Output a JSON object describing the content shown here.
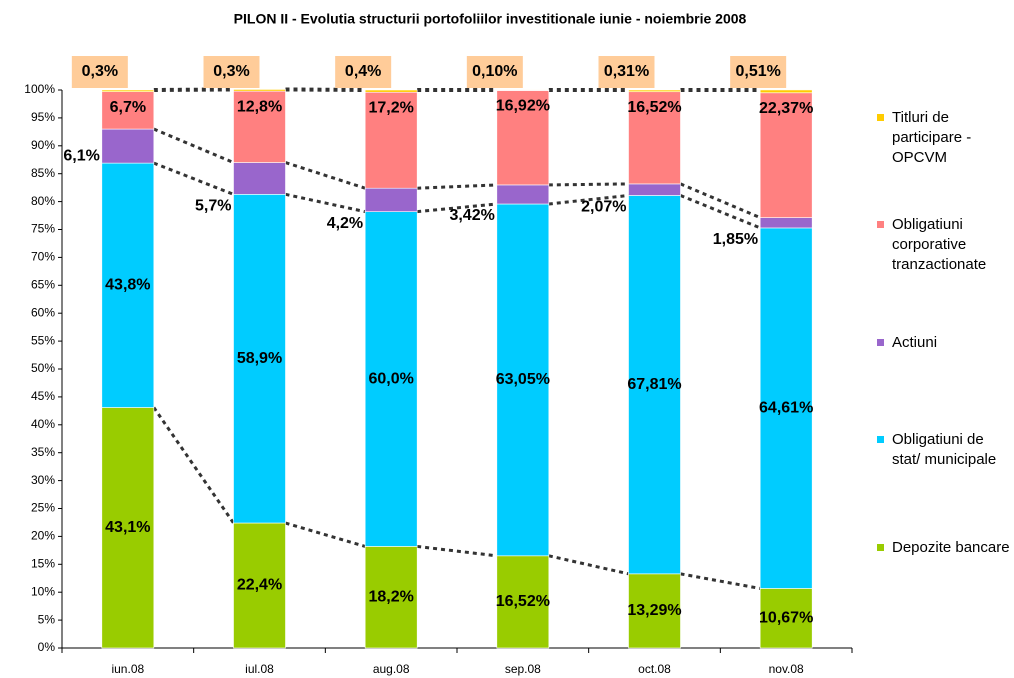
{
  "chart_data": {
    "type": "stacked-bar",
    "title": "PILON II  - Evolutia structurii portofoliilor investitionale iunie -  noiembrie 2008",
    "categories": [
      "iun.08",
      "iul.08",
      "aug.08",
      "sep.08",
      "oct.08",
      "nov.08"
    ],
    "series": [
      {
        "name": "Depozite bancare",
        "color": "#99cc00",
        "values": [
          43.1,
          22.4,
          18.2,
          16.52,
          13.29,
          10.67
        ],
        "value_labels": [
          "43,1%",
          "22,4%",
          "18,2%",
          "16,52%",
          "13,29%",
          "10,67%"
        ]
      },
      {
        "name": "Obligatiuni de stat/ municipale",
        "color": "#00ccff",
        "values": [
          43.8,
          58.9,
          60.0,
          63.05,
          67.81,
          64.61
        ],
        "value_labels": [
          "43,8%",
          "58,9%",
          "60,0%",
          "63,05%",
          "67,81%",
          "64,61%"
        ]
      },
      {
        "name": "Actiuni",
        "color": "#9966cc",
        "values": [
          6.1,
          5.7,
          4.2,
          3.42,
          2.07,
          1.85
        ],
        "value_labels": [
          "6,1%",
          "5,7%",
          "4,2%",
          "3,42%",
          "2,07%",
          "1,85%"
        ]
      },
      {
        "name": "Obligatiuni corporative tranzactionate",
        "color": "#ff8080",
        "values": [
          6.7,
          12.8,
          17.2,
          16.92,
          16.52,
          22.37
        ],
        "value_labels": [
          "6,7%",
          "12,8%",
          "17,2%",
          "16,92%",
          "16,52%",
          "22,37%"
        ]
      },
      {
        "name": "Titluri de participare - OPCVM",
        "color": "#ffcc00",
        "values": [
          0.3,
          0.3,
          0.4,
          0.1,
          0.31,
          0.51
        ],
        "value_labels": [
          "0,3%",
          "0,3%",
          "0,4%",
          "0,10%",
          "0,31%",
          "0,51%"
        ]
      }
    ],
    "ylim": [
      0,
      100
    ],
    "yticks": [
      {
        "value": 0,
        "label": "0%"
      },
      {
        "value": 5,
        "label": "5%"
      },
      {
        "value": 10,
        "label": "10%"
      },
      {
        "value": 15,
        "label": "15%"
      },
      {
        "value": 20,
        "label": "20%"
      },
      {
        "value": 25,
        "label": "25%"
      },
      {
        "value": 30,
        "label": "30%"
      },
      {
        "value": 35,
        "label": "35%"
      },
      {
        "value": 40,
        "label": "40%"
      },
      {
        "value": 45,
        "label": "45%"
      },
      {
        "value": 50,
        "label": "50%"
      },
      {
        "value": 55,
        "label": "55%"
      },
      {
        "value": 60,
        "label": "60%"
      },
      {
        "value": 65,
        "label": "65%"
      },
      {
        "value": 70,
        "label": "70%"
      },
      {
        "value": 75,
        "label": "75%"
      },
      {
        "value": 80,
        "label": "80%"
      },
      {
        "value": 85,
        "label": "85%"
      },
      {
        "value": 90,
        "label": "90%"
      },
      {
        "value": 95,
        "label": "95%"
      },
      {
        "value": 100,
        "label": "100%"
      }
    ],
    "legend": "right"
  }
}
